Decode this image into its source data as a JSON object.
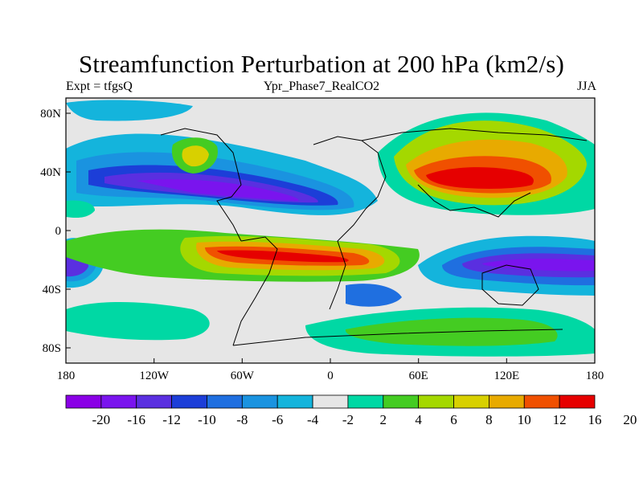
{
  "title": "Streamfunction Perturbation at 200 hPa (km2/s)",
  "left_label": "Expt = tfgsQ",
  "center_label": "Ypr_Phase7_RealCO2",
  "right_label": "JJA",
  "lat_ticks": [
    "80N",
    "40N",
    "0",
    "40S",
    "80S"
  ],
  "lon_ticks": [
    "180",
    "120W",
    "60W",
    "0",
    "60E",
    "120E",
    "180"
  ],
  "colorbar": {
    "colors": [
      "#8a00e6",
      "#7a14ee",
      "#5a2fe0",
      "#1c3ed8",
      "#1f6fe0",
      "#1a93e0",
      "#14b4dc",
      "#e6e6e6",
      "#00d8a4",
      "#44cc22",
      "#a4d800",
      "#d8d000",
      "#e8aa00",
      "#f05000",
      "#e60000"
    ],
    "labels": [
      "-20",
      "-16",
      "-12",
      "-10",
      "-8",
      "-6",
      "-4",
      "-2",
      "2",
      "4",
      "6",
      "8",
      "10",
      "12",
      "16",
      "20"
    ]
  }
}
